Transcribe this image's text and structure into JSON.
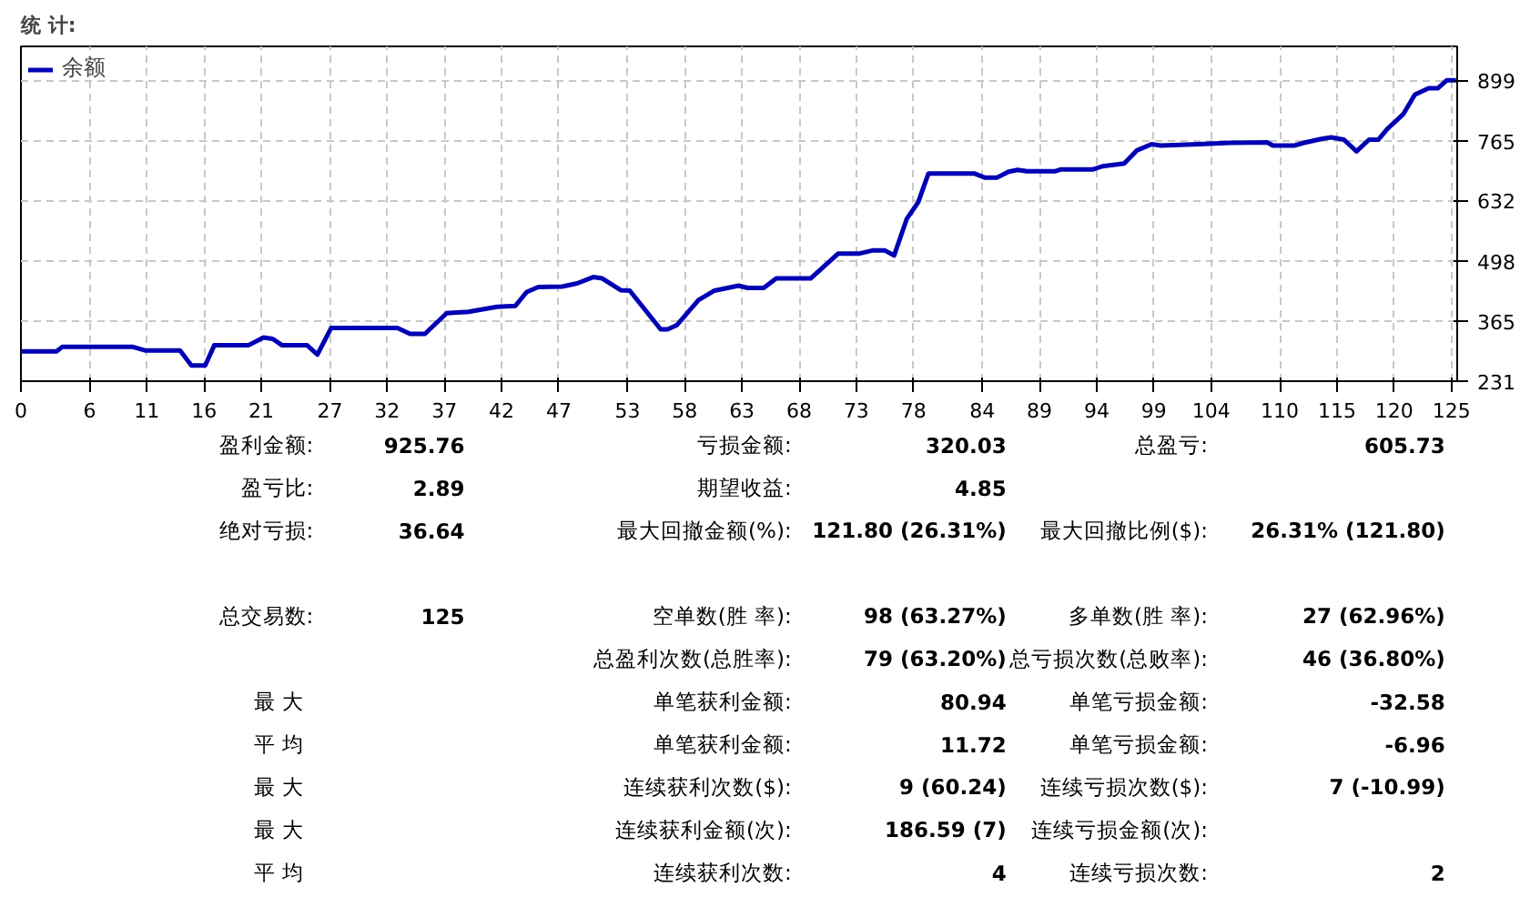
{
  "chart_data": [
    {
      "type": "line",
      "title": "统 计:",
      "legend": "top left",
      "grid": true,
      "line_style": "solid",
      "marker": "none",
      "xlim": [
        0,
        125.5
      ],
      "ylim": [
        231,
        974
      ],
      "xticks": [
        0,
        6,
        11,
        16,
        21,
        27,
        32,
        37,
        42,
        47,
        53,
        58,
        63,
        68,
        73,
        78,
        84,
        89,
        94,
        99,
        104,
        110,
        115,
        120,
        125
      ],
      "yticks": [
        231,
        365,
        498,
        632,
        765,
        899
      ],
      "series": [
        {
          "name": "余额",
          "color": "#0000b4",
          "x": [
            0,
            3.1,
            3.6,
            9.8,
            10.9,
            13.9,
            14.9,
            16.1,
            16.9,
            19.9,
            21.2,
            22.0,
            22.8,
            25.0,
            25.9,
            27.1,
            32.9,
            34.0,
            35.3,
            37.2,
            39.1,
            41.6,
            43.2,
            44.2,
            45.2,
            47.3,
            48.6,
            50.0,
            50.8,
            52.4,
            53.2,
            55.9,
            56.5,
            57.3,
            59.2,
            60.6,
            62.7,
            63.5,
            64.9,
            66.0,
            69.0,
            71.4,
            73.2,
            74.4,
            75.5,
            76.3,
            77.4,
            78.4,
            79.3,
            83.3,
            84.2,
            85.3,
            86.3,
            87.1,
            87.9,
            90.4,
            90.9,
            93.7,
            94.5,
            96.4,
            97.5,
            98.8,
            99.6,
            102.9,
            105.6,
            108.9,
            109.4,
            111.3,
            112.1,
            113.7,
            114.5,
            115.6,
            116.7,
            117.8,
            118.6,
            119.4,
            120.8,
            121.8,
            123.0,
            123.8,
            124.6,
            125.4
          ],
          "values": [
            297,
            297,
            307,
            307,
            299,
            299,
            266,
            266,
            311,
            311,
            328,
            325,
            311,
            311,
            290,
            349,
            349,
            336,
            336,
            382,
            385,
            396,
            398,
            429,
            440,
            441,
            448,
            462,
            459,
            433,
            432,
            346,
            346,
            355,
            411,
            432,
            443,
            438,
            438,
            459,
            459,
            514,
            514,
            521,
            521,
            510,
            591,
            628,
            692,
            692,
            683,
            683,
            696,
            700,
            697,
            697,
            701,
            701,
            708,
            714,
            743,
            757,
            754,
            757,
            760,
            761,
            754,
            754,
            760,
            769,
            772,
            767,
            741,
            767,
            767,
            791,
            824,
            867,
            881,
            881,
            899,
            899
          ]
        }
      ]
    },
    {
      "type": "other",
      "annotations": [
        "盈利金额:",
        "925.76",
        "亏损金额:",
        "320.03",
        "总盈亏:",
        "605.73",
        "盈亏比:",
        "2.89",
        "期望收益:",
        "4.85",
        "绝对亏损:",
        "36.64",
        "最大回撤金额(%):",
        "121.80 (26.31%)",
        "最大回撤比例($):",
        "26.31% (121.80)",
        "总交易数:",
        "125",
        "空单数(胜 率):",
        "98 (63.27%)",
        "多单数(胜 率):",
        "27 (62.96%)",
        "总盈利次数(总胜率):",
        "79 (63.20%)",
        "总亏损次数(总败率):",
        "46 (36.80%)",
        "最 大",
        "单笔获利金额:",
        "80.94",
        "单笔亏损金额:",
        "-32.58",
        "平 均",
        "单笔获利金额:",
        "11.72",
        "单笔亏损金额:",
        "-6.96",
        "最 大",
        "连续获利次数($):",
        "9 (60.24)",
        "连续亏损次数($):",
        "7 (-10.99)",
        "最 大",
        "连续获利金额(次):",
        "186.59 (7)",
        "连续亏损金额(次):",
        "平 均",
        "连续获利次数:",
        "4",
        "连续亏损次数:",
        "2"
      ]
    }
  ]
}
